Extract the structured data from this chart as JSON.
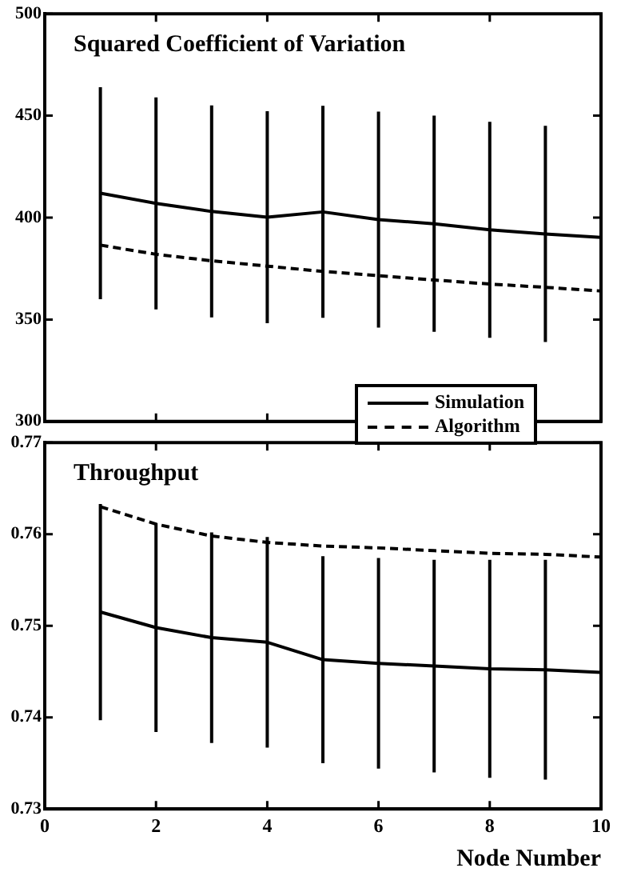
{
  "chart_data": [
    {
      "type": "line",
      "title": "Squared Coefficient of Variation",
      "x": [
        1,
        2,
        3,
        4,
        5,
        6,
        7,
        8,
        9,
        10
      ],
      "xlim": [
        0,
        10
      ],
      "xticks": [
        0,
        2,
        4,
        6,
        8,
        10
      ],
      "ylim": [
        300,
        500
      ],
      "yticks": [
        300,
        350,
        400,
        450,
        500
      ],
      "tick_labels": "y",
      "grid": false,
      "legend": "bottom right",
      "series": [
        {
          "name": "Simulation",
          "color": "#000000",
          "line_style": "solid",
          "values": [
            412,
            407,
            403,
            400.2,
            402.8,
            399,
            397,
            394,
            392,
            390.3
          ],
          "errors": [
            52,
            52,
            52,
            52,
            52,
            53,
            53,
            53,
            53,
            null
          ]
        },
        {
          "name": "Algorithm",
          "color": "#000000",
          "line_style": "dashed",
          "values": [
            386.5,
            382,
            378.8,
            376.2,
            373.6,
            371.5,
            369.4,
            367.4,
            365.8,
            364
          ]
        }
      ]
    },
    {
      "type": "line",
      "title": "Throughput",
      "xlabel": "Node Number",
      "x": [
        1,
        2,
        3,
        4,
        5,
        6,
        7,
        8,
        9,
        10
      ],
      "xlim": [
        0,
        10
      ],
      "xticks": [
        0,
        2,
        4,
        6,
        8,
        10
      ],
      "ylim": [
        0.73,
        0.77
      ],
      "yticks": [
        0.73,
        0.74,
        0.75,
        0.76,
        0.77
      ],
      "grid": false,
      "legend": false,
      "series": [
        {
          "color": "#000000",
          "line_style": "solid",
          "values": [
            0.7515,
            0.7498,
            0.7487,
            0.7482,
            0.7463,
            0.7459,
            0.7456,
            0.7453,
            0.7452,
            0.7449
          ],
          "errors": [
            0.0118,
            0.0114,
            0.0115,
            0.0115,
            0.0113,
            0.0115,
            0.0116,
            0.0119,
            0.012,
            null
          ]
        },
        {
          "color": "#000000",
          "line_style": "dashed",
          "values": [
            0.763,
            0.7611,
            0.7598,
            0.7591,
            0.7587,
            0.7585,
            0.7582,
            0.7579,
            0.7578,
            0.7575
          ]
        }
      ]
    }
  ]
}
